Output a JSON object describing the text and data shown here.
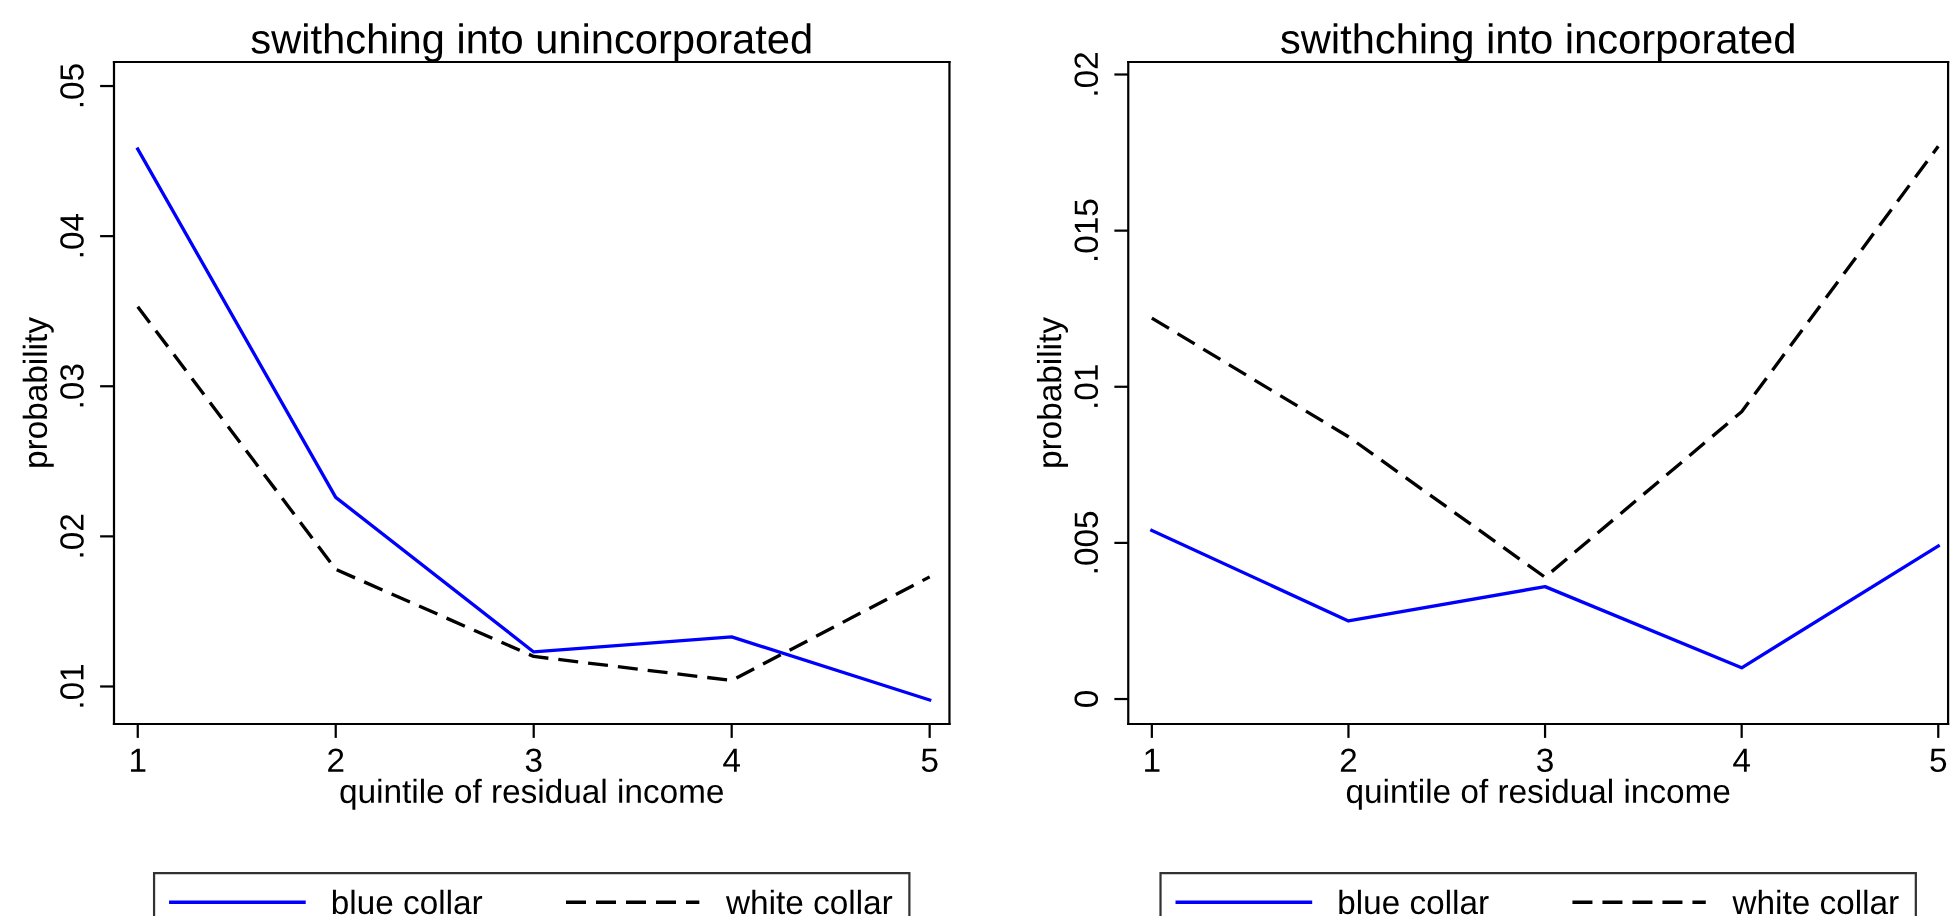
{
  "chart_data": [
    {
      "type": "line",
      "title": "swithching into unincorporated",
      "xlabel": "quintile of residual income",
      "ylabel": "probability",
      "x": [
        1,
        2,
        3,
        4,
        5
      ],
      "series": [
        {
          "name": "blue collar",
          "color": "#0000ff",
          "line_style": "solid",
          "values": [
            0.0458,
            0.0226,
            0.0123,
            0.0133,
            0.0091
          ]
        },
        {
          "name": "white collar",
          "color": "#000000",
          "line_style": "dashed",
          "values": [
            0.0353,
            0.0178,
            0.012,
            0.0104,
            0.0173
          ]
        }
      ],
      "xlim": [
        0.88,
        5.1
      ],
      "ylim": [
        0.0075,
        0.0516
      ],
      "xticks": [
        1,
        2,
        3,
        4,
        5
      ],
      "yticks": [
        {
          "value": 0.01,
          "label": ".01"
        },
        {
          "value": 0.02,
          "label": ".02"
        },
        {
          "value": 0.03,
          "label": ".03"
        },
        {
          "value": 0.04,
          "label": ".04"
        },
        {
          "value": 0.05,
          "label": ".05"
        }
      ],
      "legend": "bottom"
    },
    {
      "type": "line",
      "title": "swithching into incorporated",
      "xlabel": "quintile of residual income",
      "ylabel": "probability",
      "x": [
        1,
        2,
        3,
        4,
        5
      ],
      "series": [
        {
          "name": "blue collar",
          "color": "#0000ff",
          "line_style": "solid",
          "values": [
            0.0054,
            0.0025,
            0.0036,
            0.001,
            0.0049
          ]
        },
        {
          "name": "white collar",
          "color": "#000000",
          "line_style": "dashed",
          "values": [
            0.0122,
            0.0084,
            0.0039,
            0.0092,
            0.0177
          ]
        }
      ],
      "xlim": [
        0.88,
        5.05
      ],
      "ylim": [
        -0.0008,
        0.0204
      ],
      "xticks": [
        1,
        2,
        3,
        4,
        5
      ],
      "yticks": [
        0,
        {
          "value": 0.005,
          "label": ".005"
        },
        {
          "value": 0.01,
          "label": ".01"
        },
        {
          "value": 0.015,
          "label": ".015"
        },
        {
          "value": 0.02,
          "label": ".02"
        }
      ],
      "legend": "bottom"
    }
  ]
}
